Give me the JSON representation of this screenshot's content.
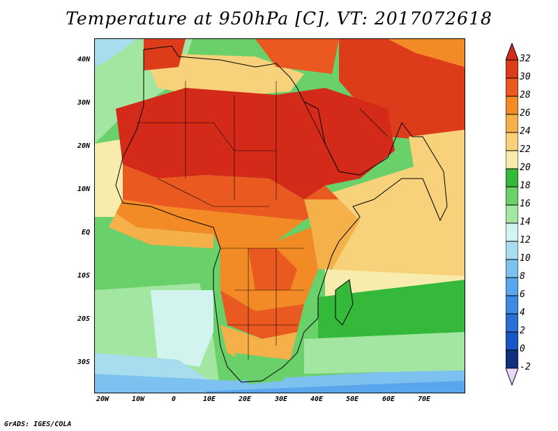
{
  "title": "Temperature at 950hPa [C], VT: 2017072618",
  "credit": "GrADS: IGES/COLA",
  "axes": {
    "lat_labels": [
      "40N",
      "30N",
      "20N",
      "10N",
      "EQ",
      "10S",
      "20S",
      "30S"
    ],
    "lon_labels": [
      "20W",
      "10W",
      "0",
      "10E",
      "20E",
      "30E",
      "40E",
      "50E",
      "60E",
      "70E"
    ]
  },
  "colorbar": {
    "labels": [
      "32",
      "30",
      "28",
      "26",
      "24",
      "22",
      "20",
      "18",
      "16",
      "14",
      "12",
      "10",
      "8",
      "6",
      "4",
      "2",
      "0",
      "-2"
    ],
    "colors": {
      "above_32": "#d42a1a",
      "30_32": "#dd3c1a",
      "28_30": "#ea5a20",
      "26_28": "#f28a25",
      "24_26": "#f6b04a",
      "22_24": "#f8d27a",
      "20_22": "#f7ecad",
      "18_20": "#35b93a",
      "16_18": "#6ad06a",
      "14_16": "#a2e6a2",
      "12_14": "#d2f4ee",
      "10_12": "#a8ddf0",
      "8_10": "#7cc1ef",
      "6_8": "#5aa6ec",
      "4_6": "#3e8ae2",
      "2_4": "#2a6fd6",
      "0_2": "#1a55c4",
      "-2_0": "#12307e",
      "below_-2": "#e8d8f8"
    }
  }
}
